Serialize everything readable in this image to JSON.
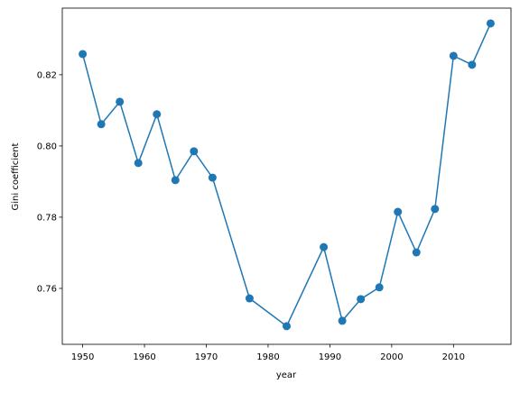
{
  "chart_data": {
    "type": "line",
    "xlabel": "year",
    "ylabel": "Gini coefficient",
    "x": [
      1950,
      1953,
      1956,
      1959,
      1962,
      1965,
      1968,
      1971,
      1977,
      1983,
      1989,
      1992,
      1995,
      1998,
      2001,
      2004,
      2007,
      2010,
      2013,
      2016
    ],
    "series": [
      {
        "color": "#1f77b4",
        "values": [
          0.8258,
          0.8061,
          0.8124,
          0.7952,
          0.8089,
          0.7904,
          0.7985,
          0.7911,
          0.7572,
          0.7494,
          0.7716,
          0.7509,
          0.757,
          0.7603,
          0.7815,
          0.7701,
          0.7823,
          0.8253,
          0.8228,
          0.8344
        ]
      }
    ],
    "xlim": [
      1946.7,
      2019.3
    ],
    "xticks": [
      1950,
      1960,
      1970,
      1980,
      1990,
      2000,
      2010
    ],
    "ylim": [
      0.7443,
      0.8387
    ],
    "yticks": [
      0.76,
      0.78,
      {
        "value": 0.8,
        "label": "0.80"
      },
      0.82
    ],
    "grid": false
  }
}
